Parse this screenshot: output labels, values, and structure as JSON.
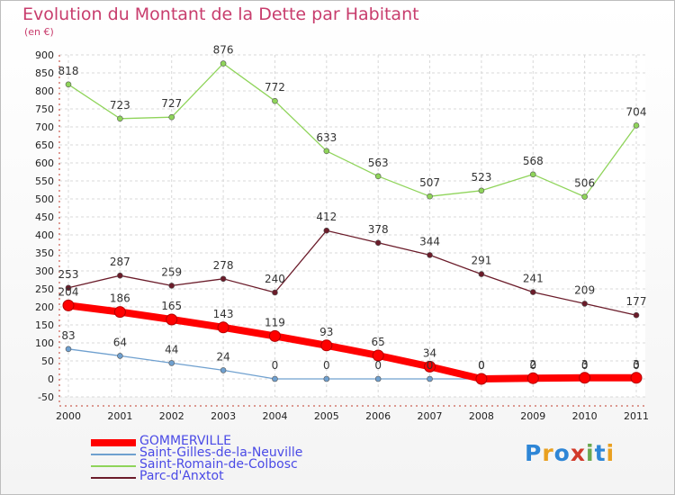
{
  "title": "Evolution du Montant de la Dette par Habitant",
  "unit": "(en €)",
  "logo": "Proxiti",
  "chart_data": {
    "type": "line",
    "x": [
      "2000",
      "2001",
      "2002",
      "2003",
      "2004",
      "2005",
      "2006",
      "2007",
      "2008",
      "2009",
      "2010",
      "2011"
    ],
    "ylim": [
      -50,
      900
    ],
    "yticks": [
      -50,
      0,
      50,
      100,
      150,
      200,
      250,
      300,
      350,
      400,
      450,
      500,
      550,
      600,
      650,
      700,
      750,
      800,
      850,
      900
    ],
    "grid": true,
    "legend_position": "bottom-left",
    "series": [
      {
        "name": "GOMMERVILLE",
        "color": "#ff0000",
        "values": [
          204,
          186,
          165,
          143,
          119,
          93,
          65,
          34,
          0,
          2,
          3,
          3
        ],
        "labels": [
          "204",
          "186",
          "165",
          "143",
          "119",
          "93",
          "65",
          "34",
          "0",
          "2",
          "3",
          "3"
        ]
      },
      {
        "name": "Saint-Gilles-de-la-Neuville",
        "color": "#6fa0cf",
        "values": [
          83,
          64,
          44,
          24,
          0,
          0,
          0,
          0,
          0,
          0,
          0,
          0
        ],
        "labels": [
          "83",
          "64",
          "44",
          "24",
          "0",
          "0",
          "0",
          "0",
          "0",
          "0",
          "0",
          "0"
        ]
      },
      {
        "name": "Saint-Romain-de-Colbosc",
        "color": "#8fd45a",
        "values": [
          818,
          723,
          727,
          876,
          772,
          633,
          563,
          507,
          523,
          568,
          506,
          704
        ],
        "labels": [
          "818",
          "723",
          "727",
          "876",
          "772",
          "633",
          "563",
          "507",
          "523",
          "568",
          "506",
          "704"
        ]
      },
      {
        "name": "Parc-d'Anxtot",
        "color": "#6b1c2a",
        "values": [
          253,
          287,
          259,
          278,
          240,
          412,
          378,
          344,
          291,
          241,
          209,
          177
        ],
        "labels": [
          "253",
          "287",
          "259",
          "278",
          "240",
          "412",
          "378",
          "344",
          "291",
          "241",
          "209",
          "177"
        ]
      }
    ]
  }
}
